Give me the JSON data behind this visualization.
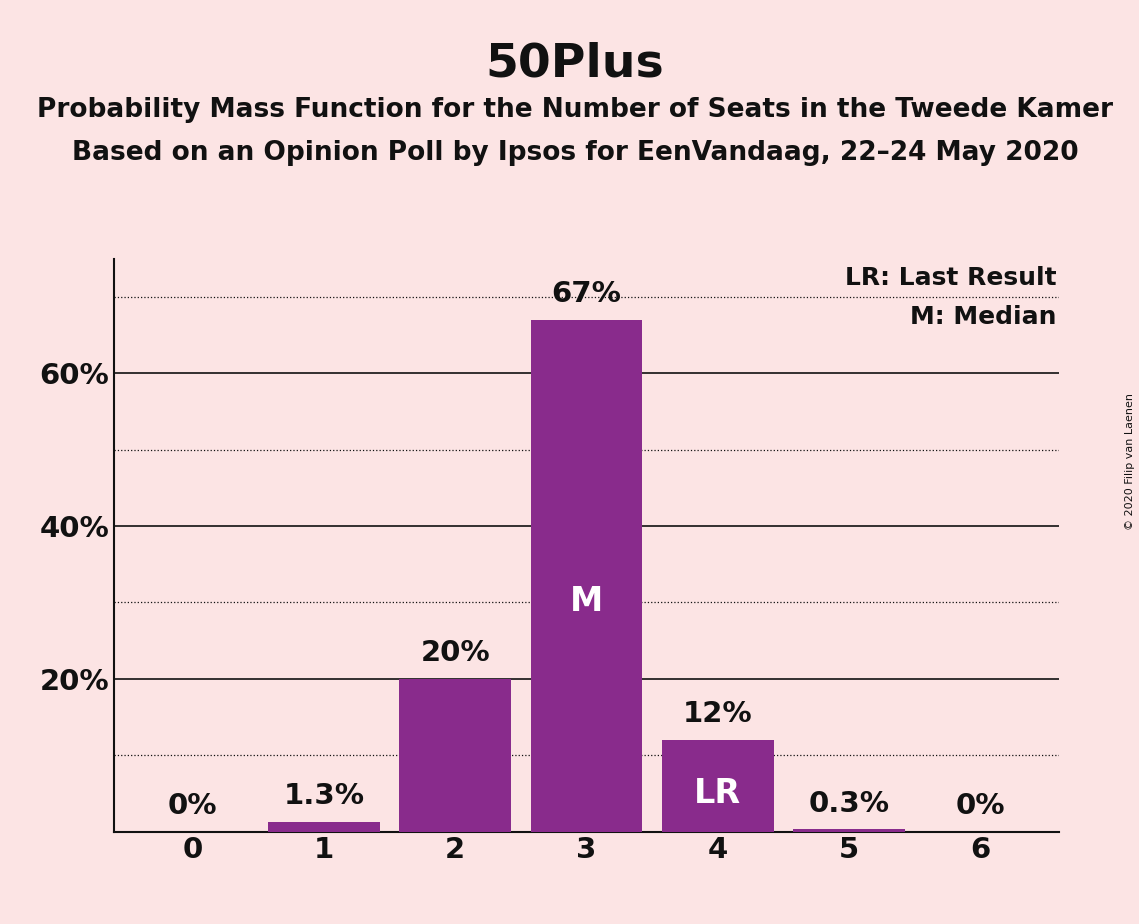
{
  "title": "50Plus",
  "subtitle1": "Probability Mass Function for the Number of Seats in the Tweede Kamer",
  "subtitle2": "Based on an Opinion Poll by Ipsos for EenVandaag, 22–24 May 2020",
  "copyright": "© 2020 Filip van Laenen",
  "categories": [
    0,
    1,
    2,
    3,
    4,
    5,
    6
  ],
  "values": [
    0.0,
    1.3,
    20.0,
    67.0,
    12.0,
    0.3,
    0.0
  ],
  "bar_color": "#892b8c",
  "background_color": "#fce4e4",
  "median_bar": 3,
  "lr_bar": 4,
  "median_label": "M",
  "lr_label": "LR",
  "legend_lr": "LR: Last Result",
  "legend_m": "M: Median",
  "bar_label_format": {
    "0": "0%",
    "1": "1.3%",
    "2": "20%",
    "3": "67%",
    "4": "12%",
    "5": "0.3%",
    "6": "0%"
  },
  "ylim": [
    0,
    75
  ],
  "ytick_positions": [
    0,
    10,
    20,
    30,
    40,
    50,
    60,
    70
  ],
  "ytick_labels": [
    "",
    "",
    "20%",
    "",
    "40%",
    "",
    "60%",
    ""
  ],
  "solid_yticks": [
    20,
    40,
    60
  ],
  "dotted_yticks": [
    10,
    30,
    50,
    70
  ],
  "title_fontsize": 34,
  "subtitle_fontsize": 19,
  "bar_label_fontsize": 21,
  "axis_fontsize": 21,
  "legend_fontsize": 18,
  "inner_label_fontsize": 24,
  "text_color": "#111111",
  "white_color": "#ffffff"
}
